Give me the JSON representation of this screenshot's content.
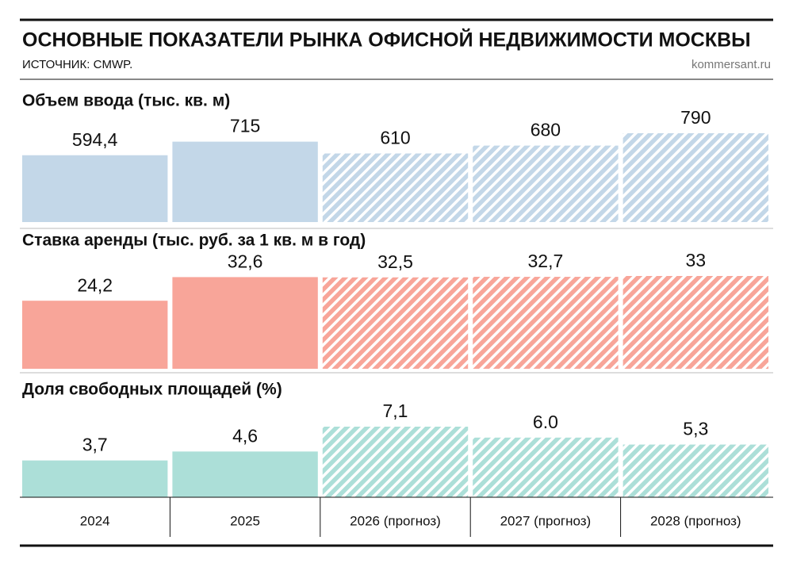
{
  "header": {
    "title": "ОСНОВНЫЕ ПОКАЗАТЕЛИ РЫНКА ОФИСНОЙ НЕДВИЖИМОСТИ МОСКВЫ",
    "source": "ИСТОЧНИК: CMWP.",
    "brand": "kommersant.ru"
  },
  "chart_data": [
    {
      "type": "bar",
      "title": "Объем ввода (тыс. кв. м)",
      "values": [
        594.4,
        715,
        610,
        680,
        790
      ],
      "value_labels": [
        "594,4",
        "715",
        "610",
        "680",
        "790"
      ],
      "color": "#c3d7e8",
      "hatched": [
        false,
        false,
        true,
        true,
        true
      ]
    },
    {
      "type": "bar",
      "title": "Ставка аренды (тыс. руб. за 1 кв. м в год)",
      "values": [
        24.2,
        32.6,
        32.5,
        32.7,
        33
      ],
      "value_labels": [
        "24,2",
        "32,6",
        "32,5",
        "32,7",
        "33"
      ],
      "color": "#f8a599",
      "hatched": [
        false,
        false,
        true,
        true,
        true
      ]
    },
    {
      "type": "bar",
      "title": "Доля свободных площадей (%)",
      "values": [
        3.7,
        4.6,
        7.1,
        6.0,
        5.3
      ],
      "value_labels": [
        "3,7",
        "4,6",
        "7,1",
        "6.0",
        "5,3"
      ],
      "color": "#acdfd8",
      "hatched": [
        false,
        false,
        true,
        true,
        true
      ],
      "categories": [
        "2024",
        "2025",
        "2026 (прогноз)",
        "2027 (прогноз)",
        "2028 (прогноз)"
      ]
    }
  ]
}
